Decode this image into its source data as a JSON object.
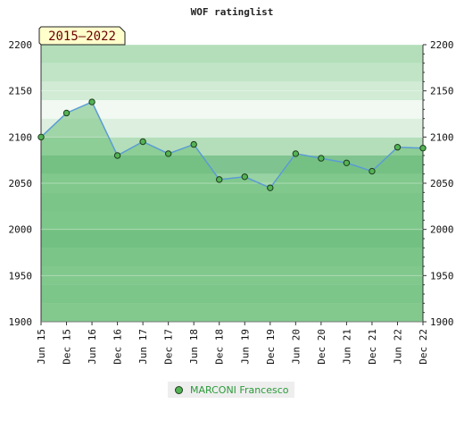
{
  "chart_data": {
    "type": "line",
    "title": "WOF ratinglist",
    "badge": "2015–2022",
    "ylim": [
      1900,
      2200
    ],
    "yticks": [
      1900,
      1950,
      2000,
      2050,
      2100,
      2150,
      2200
    ],
    "categories": [
      "Jun 15",
      "Dec 15",
      "Jun 16",
      "Dec 16",
      "Jun 17",
      "Dec 17",
      "Jun 18",
      "Dec 18",
      "Jun 19",
      "Dec 19",
      "Jun 20",
      "Dec 20",
      "Jun 21",
      "Dec 21",
      "Jun 22",
      "Dec 22"
    ],
    "series": [
      {
        "name": "MARCONI Francesco",
        "values": [
          2100,
          2126,
          2138,
          2080,
          2095,
          2082,
          2092,
          2054,
          2057,
          2045,
          2082,
          2077,
          2072,
          2063,
          2089,
          2088
        ]
      }
    ],
    "grid": true,
    "legend_position": "bottom",
    "colors": {
      "line": "#5b9bd5",
      "marker_fill": "#54b354",
      "marker_stroke": "#1d3d1d",
      "area_fill": "#6dbf7a",
      "band_colors": [
        "#9dd5a7",
        "#8fcf9d",
        "#99d3a4",
        "#8ccd9a",
        "#79c38c",
        "#93d1a0",
        "#8ccd9a",
        "#99d3a4",
        "#7fc490",
        "#b3deb9",
        "#ddf0df",
        "#f1f9f2",
        "#d1ebd5",
        "#c1e4c6",
        "#b3deb9"
      ],
      "badge_bg": "#ffffcc"
    }
  }
}
